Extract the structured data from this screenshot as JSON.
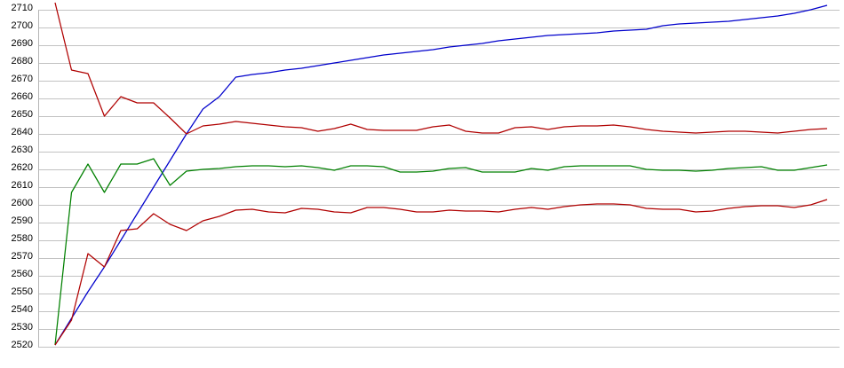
{
  "chart_data": {
    "type": "line",
    "title": "",
    "legend": {
      "visible": false
    },
    "background_color": "#ffffff",
    "grid": {
      "horizontal": true,
      "vertical": false,
      "color": "#c2c2c2",
      "axis_line_color": "#b5b5b5"
    },
    "y_axis": {
      "min": 2520,
      "max": 2710,
      "tick_step": 10,
      "tick_labels": [
        "2710",
        "2700",
        "2690",
        "2680",
        "2670",
        "2660",
        "2650",
        "2640",
        "2630",
        "2620",
        "2610",
        "2600",
        "2590",
        "2580",
        "2570",
        "2560",
        "2550",
        "2540",
        "2530",
        "2520"
      ]
    },
    "x_axis": {
      "point_count": 48,
      "tick_labels": [],
      "labels_visible": false
    },
    "series": [
      {
        "name": "blue-line",
        "color": "#0000cc",
        "values": [
          2521,
          2536,
          2551,
          2565,
          2580,
          2595,
          2610,
          2625,
          2640,
          2654,
          2661,
          2672,
          2673.5,
          2674.5,
          2676,
          2677,
          2678.5,
          2680,
          2681.5,
          2683,
          2684.5,
          2685.5,
          2686.5,
          2687.5,
          2689,
          2690,
          2691,
          2692.5,
          2693.5,
          2694.5,
          2695.5,
          2696,
          2696.5,
          2697,
          2698,
          2698.5,
          2699,
          2701,
          2702,
          2702.5,
          2703,
          2703.5,
          2704.5,
          2705.5,
          2706.5,
          2708,
          2710,
          2712.5
        ]
      },
      {
        "name": "upper-dark-red-line",
        "color": "#b00000",
        "values": [
          2714,
          2676,
          2674,
          2650,
          2661,
          2657.5,
          2657.5,
          2649,
          2640,
          2644.5,
          2645.5,
          2647,
          2646,
          2645,
          2644,
          2643.5,
          2641.5,
          2643,
          2645.5,
          2642.5,
          2642,
          2642,
          2642,
          2644,
          2645,
          2641.5,
          2640.5,
          2640.5,
          2643.5,
          2644,
          2642.5,
          2644,
          2644.5,
          2644.5,
          2645,
          2644,
          2642.5,
          2641.5,
          2641,
          2640.5,
          2641,
          2641.5,
          2641.5,
          2641,
          2640.5,
          2641.5,
          2642.5,
          2643
        ]
      },
      {
        "name": "green-line",
        "color": "#008000",
        "values": [
          2521,
          2607,
          2623,
          2607,
          2623,
          2623,
          2626,
          2611,
          2619,
          2620,
          2620.5,
          2621.5,
          2622,
          2622,
          2621.5,
          2622,
          2621,
          2619.5,
          2622,
          2622,
          2621.5,
          2618.5,
          2618.5,
          2619,
          2620.5,
          2621,
          2618.5,
          2618.5,
          2618.5,
          2620.5,
          2619.5,
          2621.5,
          2622,
          2622,
          2622,
          2622,
          2620,
          2619.5,
          2619.5,
          2619,
          2619.5,
          2620.5,
          2621,
          2621.5,
          2619.5,
          2619.5,
          2621,
          2622.5
        ]
      },
      {
        "name": "lower-dark-red-line",
        "color": "#b00000",
        "values": [
          2521,
          2535,
          2572.5,
          2565,
          2585.5,
          2586.5,
          2595,
          2589,
          2585.5,
          2591,
          2593.5,
          2597,
          2597.5,
          2596,
          2595.5,
          2598,
          2597.5,
          2596,
          2595.5,
          2598.5,
          2598.5,
          2597.5,
          2596,
          2596,
          2597,
          2596.5,
          2596.5,
          2596,
          2597.5,
          2598.5,
          2597.5,
          2599,
          2600,
          2600.5,
          2600.5,
          2600,
          2598,
          2597.5,
          2597.5,
          2596,
          2596.5,
          2598,
          2599,
          2599.5,
          2599.5,
          2598.5,
          2600,
          2603
        ]
      }
    ]
  }
}
